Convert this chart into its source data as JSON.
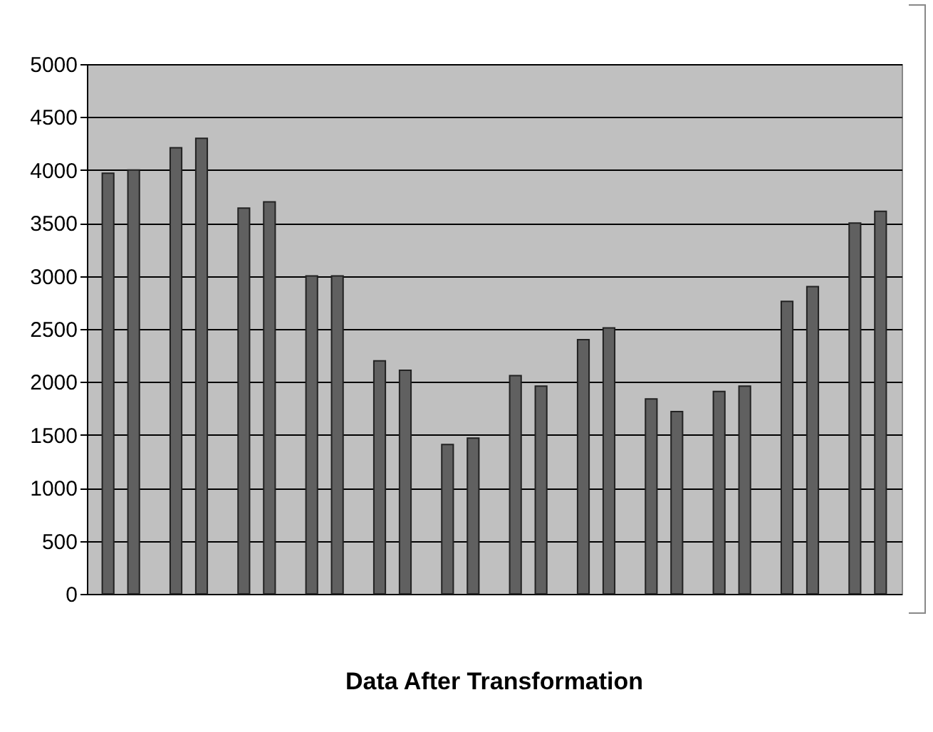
{
  "chart_data": {
    "type": "bar",
    "title": "Data After Transformation",
    "categories": [
      null,
      null,
      null,
      null,
      null,
      null,
      null,
      null,
      null,
      null,
      null,
      null
    ],
    "series": [
      {
        "color": "#606060",
        "values": [
          3970,
          4210,
          3640,
          3000,
          2200,
          1410,
          2060,
          2400,
          1840,
          1910,
          2760,
          3500
        ]
      },
      {
        "color": "#606060",
        "values": [
          4000,
          4300,
          3700,
          3000,
          2110,
          1470,
          1960,
          2510,
          1720,
          1960,
          2900,
          3610
        ]
      }
    ],
    "ylim": [
      0,
      5000
    ],
    "yticks": [
      0,
      500,
      1000,
      1500,
      2000,
      2500,
      3000,
      3500,
      4000,
      4500,
      5000
    ],
    "grid": "y",
    "legend": false,
    "tick_labels": "y"
  }
}
